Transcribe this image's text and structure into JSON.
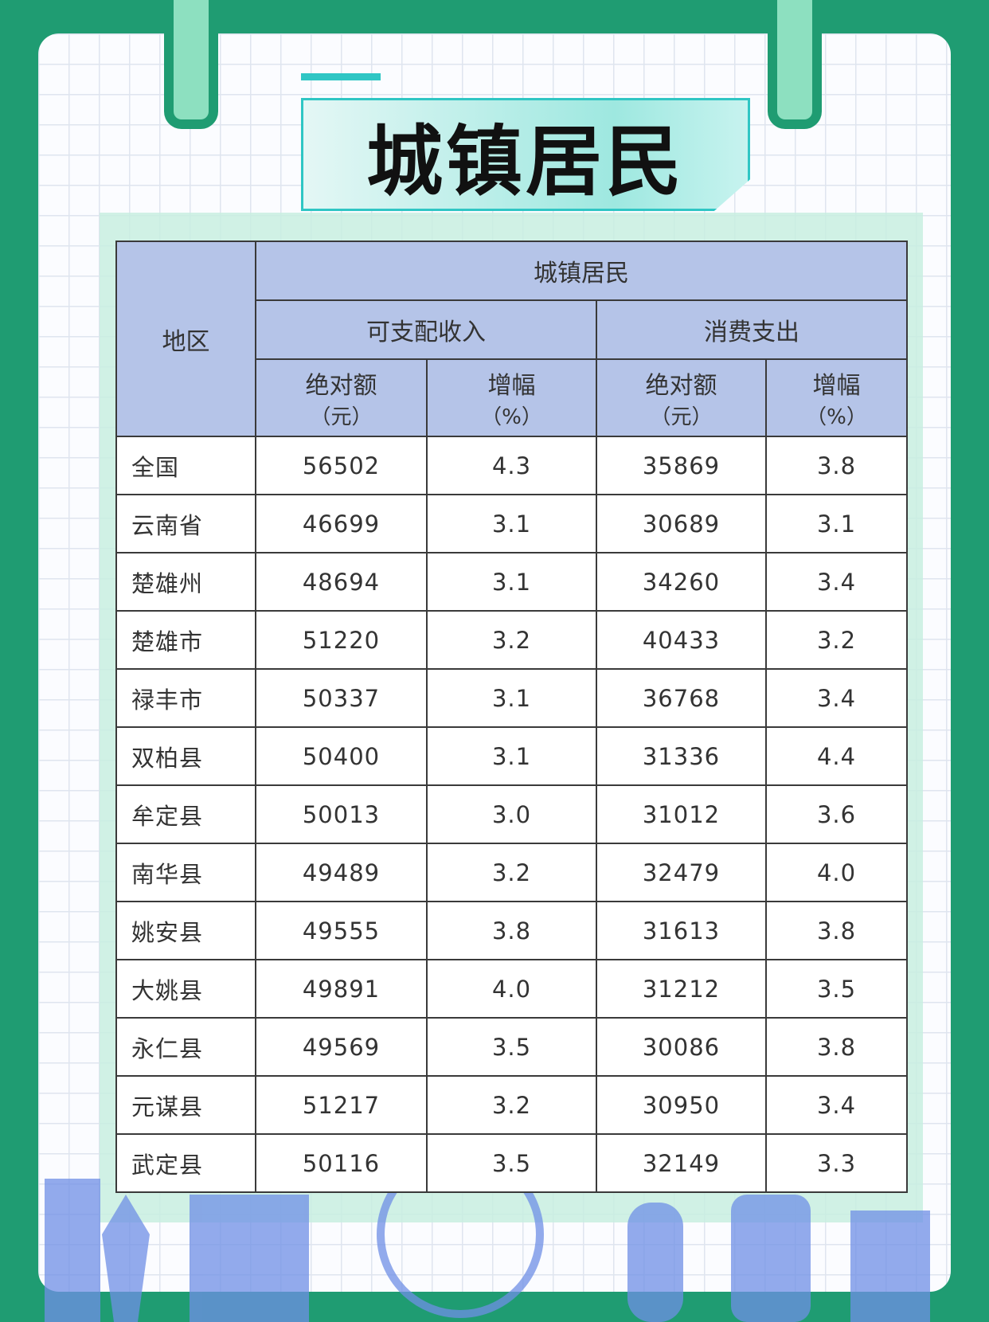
{
  "header": {
    "title": "城镇居民"
  },
  "table": {
    "region_head": "地区",
    "group_head": "城镇居民",
    "sub_heads": [
      "可支配收入",
      "消费支出"
    ],
    "col_heads": [
      {
        "name": "绝对额",
        "unit": "（元）"
      },
      {
        "name": "增幅",
        "unit": "（%）"
      },
      {
        "name": "绝对额",
        "unit": "（元）"
      },
      {
        "name": "增幅",
        "unit": "（%）"
      }
    ],
    "rows": [
      [
        "全国",
        "56502",
        "4.3",
        "35869",
        "3.8"
      ],
      [
        "云南省",
        "46699",
        "3.1",
        "30689",
        "3.1"
      ],
      [
        "楚雄州",
        "48694",
        "3.1",
        "34260",
        "3.4"
      ],
      [
        "楚雄市",
        "51220",
        "3.2",
        "40433",
        "3.2"
      ],
      [
        "禄丰市",
        "50337",
        "3.1",
        "36768",
        "3.4"
      ],
      [
        "双柏县",
        "50400",
        "3.1",
        "31336",
        "4.4"
      ],
      [
        "牟定县",
        "50013",
        "3.0",
        "31012",
        "3.6"
      ],
      [
        "南华县",
        "49489",
        "3.2",
        "32479",
        "4.0"
      ],
      [
        "姚安县",
        "49555",
        "3.8",
        "31613",
        "3.8"
      ],
      [
        "大姚县",
        "49891",
        "4.0",
        "31212",
        "3.5"
      ],
      [
        "永仁县",
        "49569",
        "3.5",
        "30086",
        "3.8"
      ],
      [
        "元谋县",
        "51217",
        "3.2",
        "30950",
        "3.4"
      ],
      [
        "武定县",
        "50116",
        "3.5",
        "32149",
        "3.3"
      ]
    ]
  }
}
